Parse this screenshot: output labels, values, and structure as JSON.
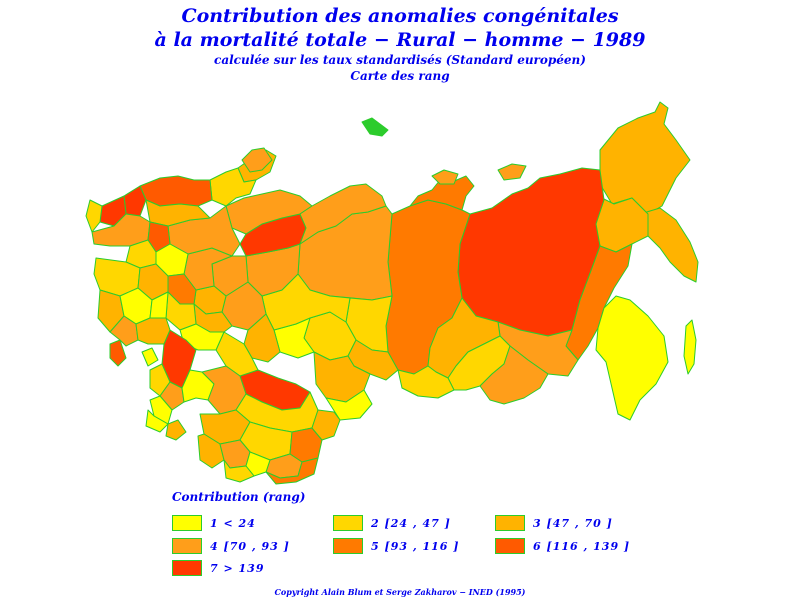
{
  "title": {
    "line1": "Contribution des anomalies congénitales",
    "line2": "à la mortalité totale − Rural − homme − 1989",
    "line3": "calculée sur les taux standardisés (Standard européen)",
    "line4": "Carte des rang"
  },
  "colors": {
    "border": "#2ccc2c",
    "r1": "#ffff00",
    "r2": "#ffd700",
    "r3": "#ffb300",
    "r4": "#ff9e1a",
    "r5": "#ff7a00",
    "r6": "#ff5a00",
    "r7": "#ff3800"
  },
  "legend": {
    "title": "Contribution (rang)",
    "items": [
      {
        "label": "1 < 24",
        "color": "#ffff00"
      },
      {
        "label": "2 [24 , 47 ]",
        "color": "#ffd700"
      },
      {
        "label": "3 [47 , 70 ]",
        "color": "#ffb300"
      },
      {
        "label": "4 [70 , 93 ]",
        "color": "#ff9e1a"
      },
      {
        "label": "5 [93 , 116 ]",
        "color": "#ff7a00"
      },
      {
        "label": "6 [116 , 139 ]",
        "color": "#ff5a00"
      },
      {
        "label": "7 > 139",
        "color": "#ff3800"
      }
    ]
  },
  "copyright": "Copyright Alain Blum et Serge Zakharov − INED (1995)"
}
